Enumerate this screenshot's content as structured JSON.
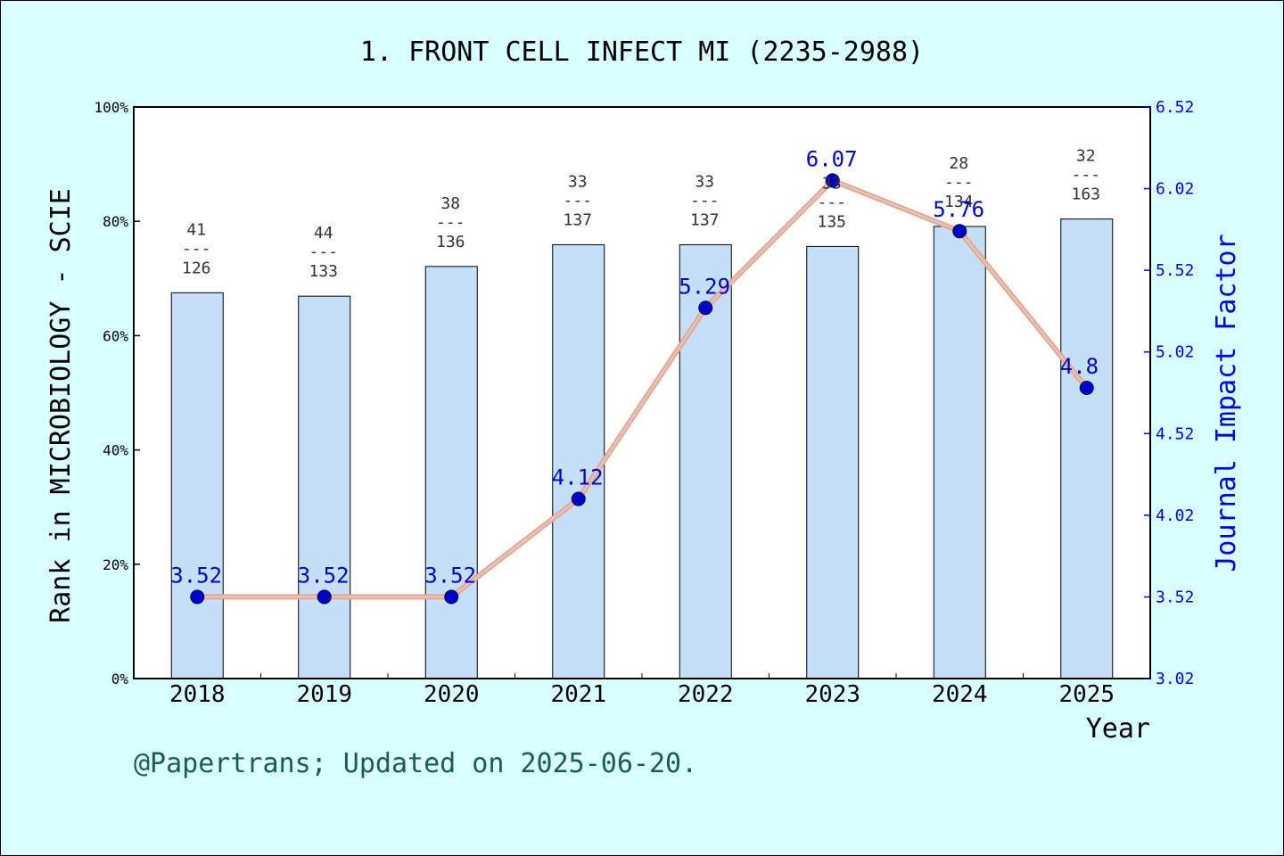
{
  "chart_data": {
    "type": "bar",
    "title": "1. FRONT CELL INFECT MI (2235-2988)",
    "xlabel": "Year",
    "ylabel": "Rank in MICROBIOLOGY - SCIE",
    "y2label": "Journal Impact Factor",
    "categories": [
      "2018",
      "2019",
      "2020",
      "2021",
      "2022",
      "2023",
      "2024",
      "2025"
    ],
    "ylim": [
      0,
      100
    ],
    "y_ticks": [
      "0%",
      "20%",
      "40%",
      "60%",
      "80%",
      "100%"
    ],
    "y2lim": [
      3.02,
      6.52
    ],
    "y2_ticks": [
      "3.02",
      "3.52",
      "4.02",
      "4.52",
      "5.02",
      "5.52",
      "6.02",
      "6.52"
    ],
    "series": [
      {
        "type": "bar",
        "values": [
          67.5,
          66.9,
          72.1,
          75.9,
          75.9,
          75.6,
          79.1,
          80.4
        ],
        "rank": [
          "41",
          "44",
          "38",
          "33",
          "33",
          "33",
          "28",
          "32"
        ],
        "total": [
          "126",
          "133",
          "136",
          "137",
          "137",
          "135",
          "134",
          "163"
        ],
        "separator": "---",
        "color": "#c5dff8"
      },
      {
        "type": "line",
        "axis": "right",
        "values": [
          3.52,
          3.52,
          3.52,
          4.12,
          5.29,
          6.07,
          5.76,
          4.8
        ],
        "labels": [
          "3.52",
          "3.52",
          "3.52",
          "4.12",
          "5.29",
          "6.07",
          "5.76",
          "4.8"
        ],
        "color": "#f4a07a",
        "marker_color": "#0000cc"
      }
    ],
    "grid": false,
    "legend": "none"
  },
  "footer": {
    "text": "@Papertrans; Updated on 2025-06-20."
  },
  "colors": {
    "background": "#d9ffff",
    "plot_background": "#ffffff",
    "right_axis": "#0000ee",
    "footer": "#1a5c55"
  }
}
